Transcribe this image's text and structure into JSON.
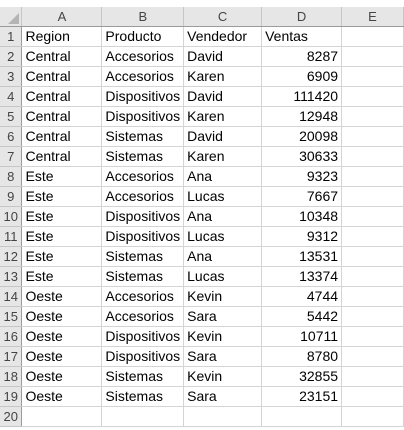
{
  "column_headers": [
    "A",
    "B",
    "C",
    "D",
    "E"
  ],
  "row_numbers": [
    "1",
    "2",
    "3",
    "4",
    "5",
    "6",
    "7",
    "8",
    "9",
    "10",
    "11",
    "12",
    "13",
    "14",
    "15",
    "16",
    "17",
    "18",
    "19",
    "20"
  ],
  "rows": [
    [
      "Region",
      "Producto",
      "Vendedor",
      "Ventas",
      ""
    ],
    [
      "Central",
      "Accesorios",
      "David",
      "8287",
      ""
    ],
    [
      "Central",
      "Accesorios",
      "Karen",
      "6909",
      ""
    ],
    [
      "Central",
      "Dispositivos",
      "David",
      "111420",
      ""
    ],
    [
      "Central",
      "Dispositivos",
      "Karen",
      "12948",
      ""
    ],
    [
      "Central",
      "Sistemas",
      "David",
      "20098",
      ""
    ],
    [
      "Central",
      "Sistemas",
      "Karen",
      "30633",
      ""
    ],
    [
      "Este",
      "Accesorios",
      "Ana",
      "9323",
      ""
    ],
    [
      "Este",
      "Accesorios",
      "Lucas",
      "7667",
      ""
    ],
    [
      "Este",
      "Dispositivos",
      "Ana",
      "10348",
      ""
    ],
    [
      "Este",
      "Dispositivos",
      "Lucas",
      "9312",
      ""
    ],
    [
      "Este",
      "Sistemas",
      "Ana",
      "13531",
      ""
    ],
    [
      "Este",
      "Sistemas",
      "Lucas",
      "13374",
      ""
    ],
    [
      "Oeste",
      "Accesorios",
      "Kevin",
      "4744",
      ""
    ],
    [
      "Oeste",
      "Accesorios",
      "Sara",
      "5442",
      ""
    ],
    [
      "Oeste",
      "Dispositivos",
      "Kevin",
      "10711",
      ""
    ],
    [
      "Oeste",
      "Dispositivos",
      "Sara",
      "8780",
      ""
    ],
    [
      "Oeste",
      "Sistemas",
      "Kevin",
      "32855",
      ""
    ],
    [
      "Oeste",
      "Sistemas",
      "Sara",
      "23151",
      ""
    ],
    [
      "",
      "",
      "",
      "",
      ""
    ]
  ]
}
